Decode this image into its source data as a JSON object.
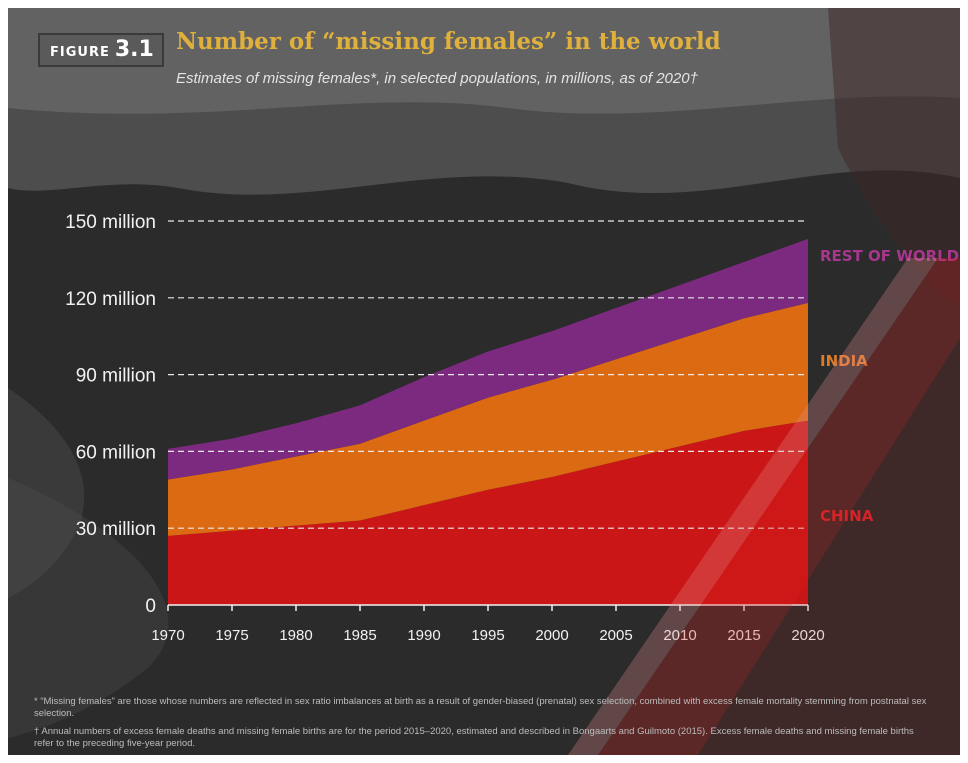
{
  "figure": {
    "label": "FIGURE",
    "number": "3.1"
  },
  "title": "Number of “missing females” in the world",
  "subtitle": "Estimates of missing females*, in selected populations, in millions, as of 2020†",
  "colors": {
    "china": "#ca1616",
    "india": "#db6a12",
    "rest_of_world": "#7b2a7f",
    "china_label": "#d8262a",
    "india_label": "#dd7b2a",
    "rest_label": "#a8368f",
    "title": "#e0b03c",
    "background": "#262626"
  },
  "chart_data": {
    "type": "area",
    "stacked": true,
    "x": [
      1970,
      1975,
      1980,
      1985,
      1990,
      1995,
      2000,
      2005,
      2010,
      2015,
      2020
    ],
    "xlim": [
      1970,
      2020
    ],
    "ylim": [
      0,
      150
    ],
    "y_unit": "million",
    "yticks": [
      0,
      30,
      60,
      90,
      120,
      150
    ],
    "ytick_labels": [
      "0",
      "30 million",
      "60 million",
      "90 million",
      "120 million",
      "150 million"
    ],
    "xtick_labels": [
      "1970",
      "1975",
      "1980",
      "1985",
      "1990",
      "1995",
      "2000",
      "2005",
      "2010",
      "2015",
      "2020"
    ],
    "grid": "horizontal dashed",
    "series": [
      {
        "name": "CHINA",
        "values": [
          27,
          29,
          31,
          33,
          39,
          45,
          50,
          56,
          62,
          68,
          72
        ]
      },
      {
        "name": "INDIA",
        "values": [
          22,
          24,
          27,
          30,
          33,
          36,
          38,
          40,
          42,
          44,
          46
        ]
      },
      {
        "name": "REST OF WORLD",
        "values": [
          12,
          12,
          13,
          15,
          17,
          18,
          19,
          20,
          21,
          22,
          25
        ]
      }
    ]
  },
  "footnotes": [
    "* “Missing females” are those whose numbers are reflected in sex ratio imbalances at birth as a result of gender-biased (prenatal) sex selection, combined with excess female mortality stemming from postnatal sex selection.",
    "† Annual numbers of excess female deaths and missing female births are for the period 2015–2020, estimated and described in Bongaarts and Guilmoto (2015). Excess female deaths and missing female births refer to the preceding five-year period."
  ]
}
